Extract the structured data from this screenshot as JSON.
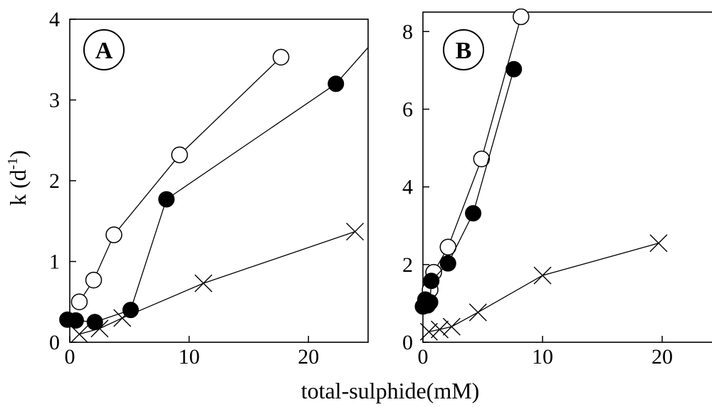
{
  "figure": {
    "xlabel": "total-sulphide(mM)",
    "ylabel": "k (d",
    "ylabel_sup": "-1",
    "ylabel_close": ")"
  },
  "chart_data": [
    {
      "type": "line",
      "panel_label": "A",
      "xlim": [
        0,
        25
      ],
      "ylim": [
        0,
        4
      ],
      "xticks": [
        0,
        10,
        20
      ],
      "yticks": [
        0,
        1,
        2,
        3,
        4
      ],
      "grid": false,
      "series": [
        {
          "marker": "open-circle",
          "x": [
            0.8,
            2.0,
            3.7,
            9.2,
            17.7
          ],
          "y": [
            0.5,
            0.77,
            1.33,
            2.32,
            3.53
          ]
        },
        {
          "marker": "filled-circle",
          "x": [
            -0.2,
            0.5,
            2.1,
            5.1,
            8.1,
            22.3
          ],
          "y": [
            0.28,
            0.27,
            0.25,
            0.4,
            1.77,
            3.2
          ],
          "extend_to": [
            25,
            3.65
          ]
        },
        {
          "marker": "cross",
          "x": [
            0.8,
            2.5,
            4.4,
            11.2,
            23.9
          ],
          "y": [
            0.1,
            0.17,
            0.3,
            0.73,
            1.37
          ]
        }
      ]
    },
    {
      "type": "line",
      "panel_label": "B",
      "xlim": [
        0,
        25
      ],
      "ylim": [
        0,
        8.5
      ],
      "xticks": [
        0,
        10,
        20
      ],
      "yticks": [
        0,
        2,
        4,
        6,
        8
      ],
      "grid": false,
      "series": [
        {
          "marker": "open-circle",
          "x": [
            0.4,
            0.6,
            0.9,
            2.1,
            4.9,
            8.2
          ],
          "y": [
            1.0,
            1.35,
            1.8,
            2.45,
            4.72,
            8.38
          ]
        },
        {
          "marker": "filled-circle",
          "x": [
            0.0,
            0.2,
            0.4,
            0.6,
            0.7,
            2.1,
            4.2,
            7.6
          ],
          "y": [
            0.92,
            1.1,
            0.95,
            1.03,
            1.58,
            2.03,
            3.32,
            7.03
          ]
        },
        {
          "marker": "cross",
          "x": [
            0.5,
            1.4,
            2.4,
            4.6,
            10.0,
            19.7
          ],
          "y": [
            0.27,
            0.33,
            0.4,
            0.77,
            1.72,
            2.55
          ]
        }
      ]
    }
  ]
}
